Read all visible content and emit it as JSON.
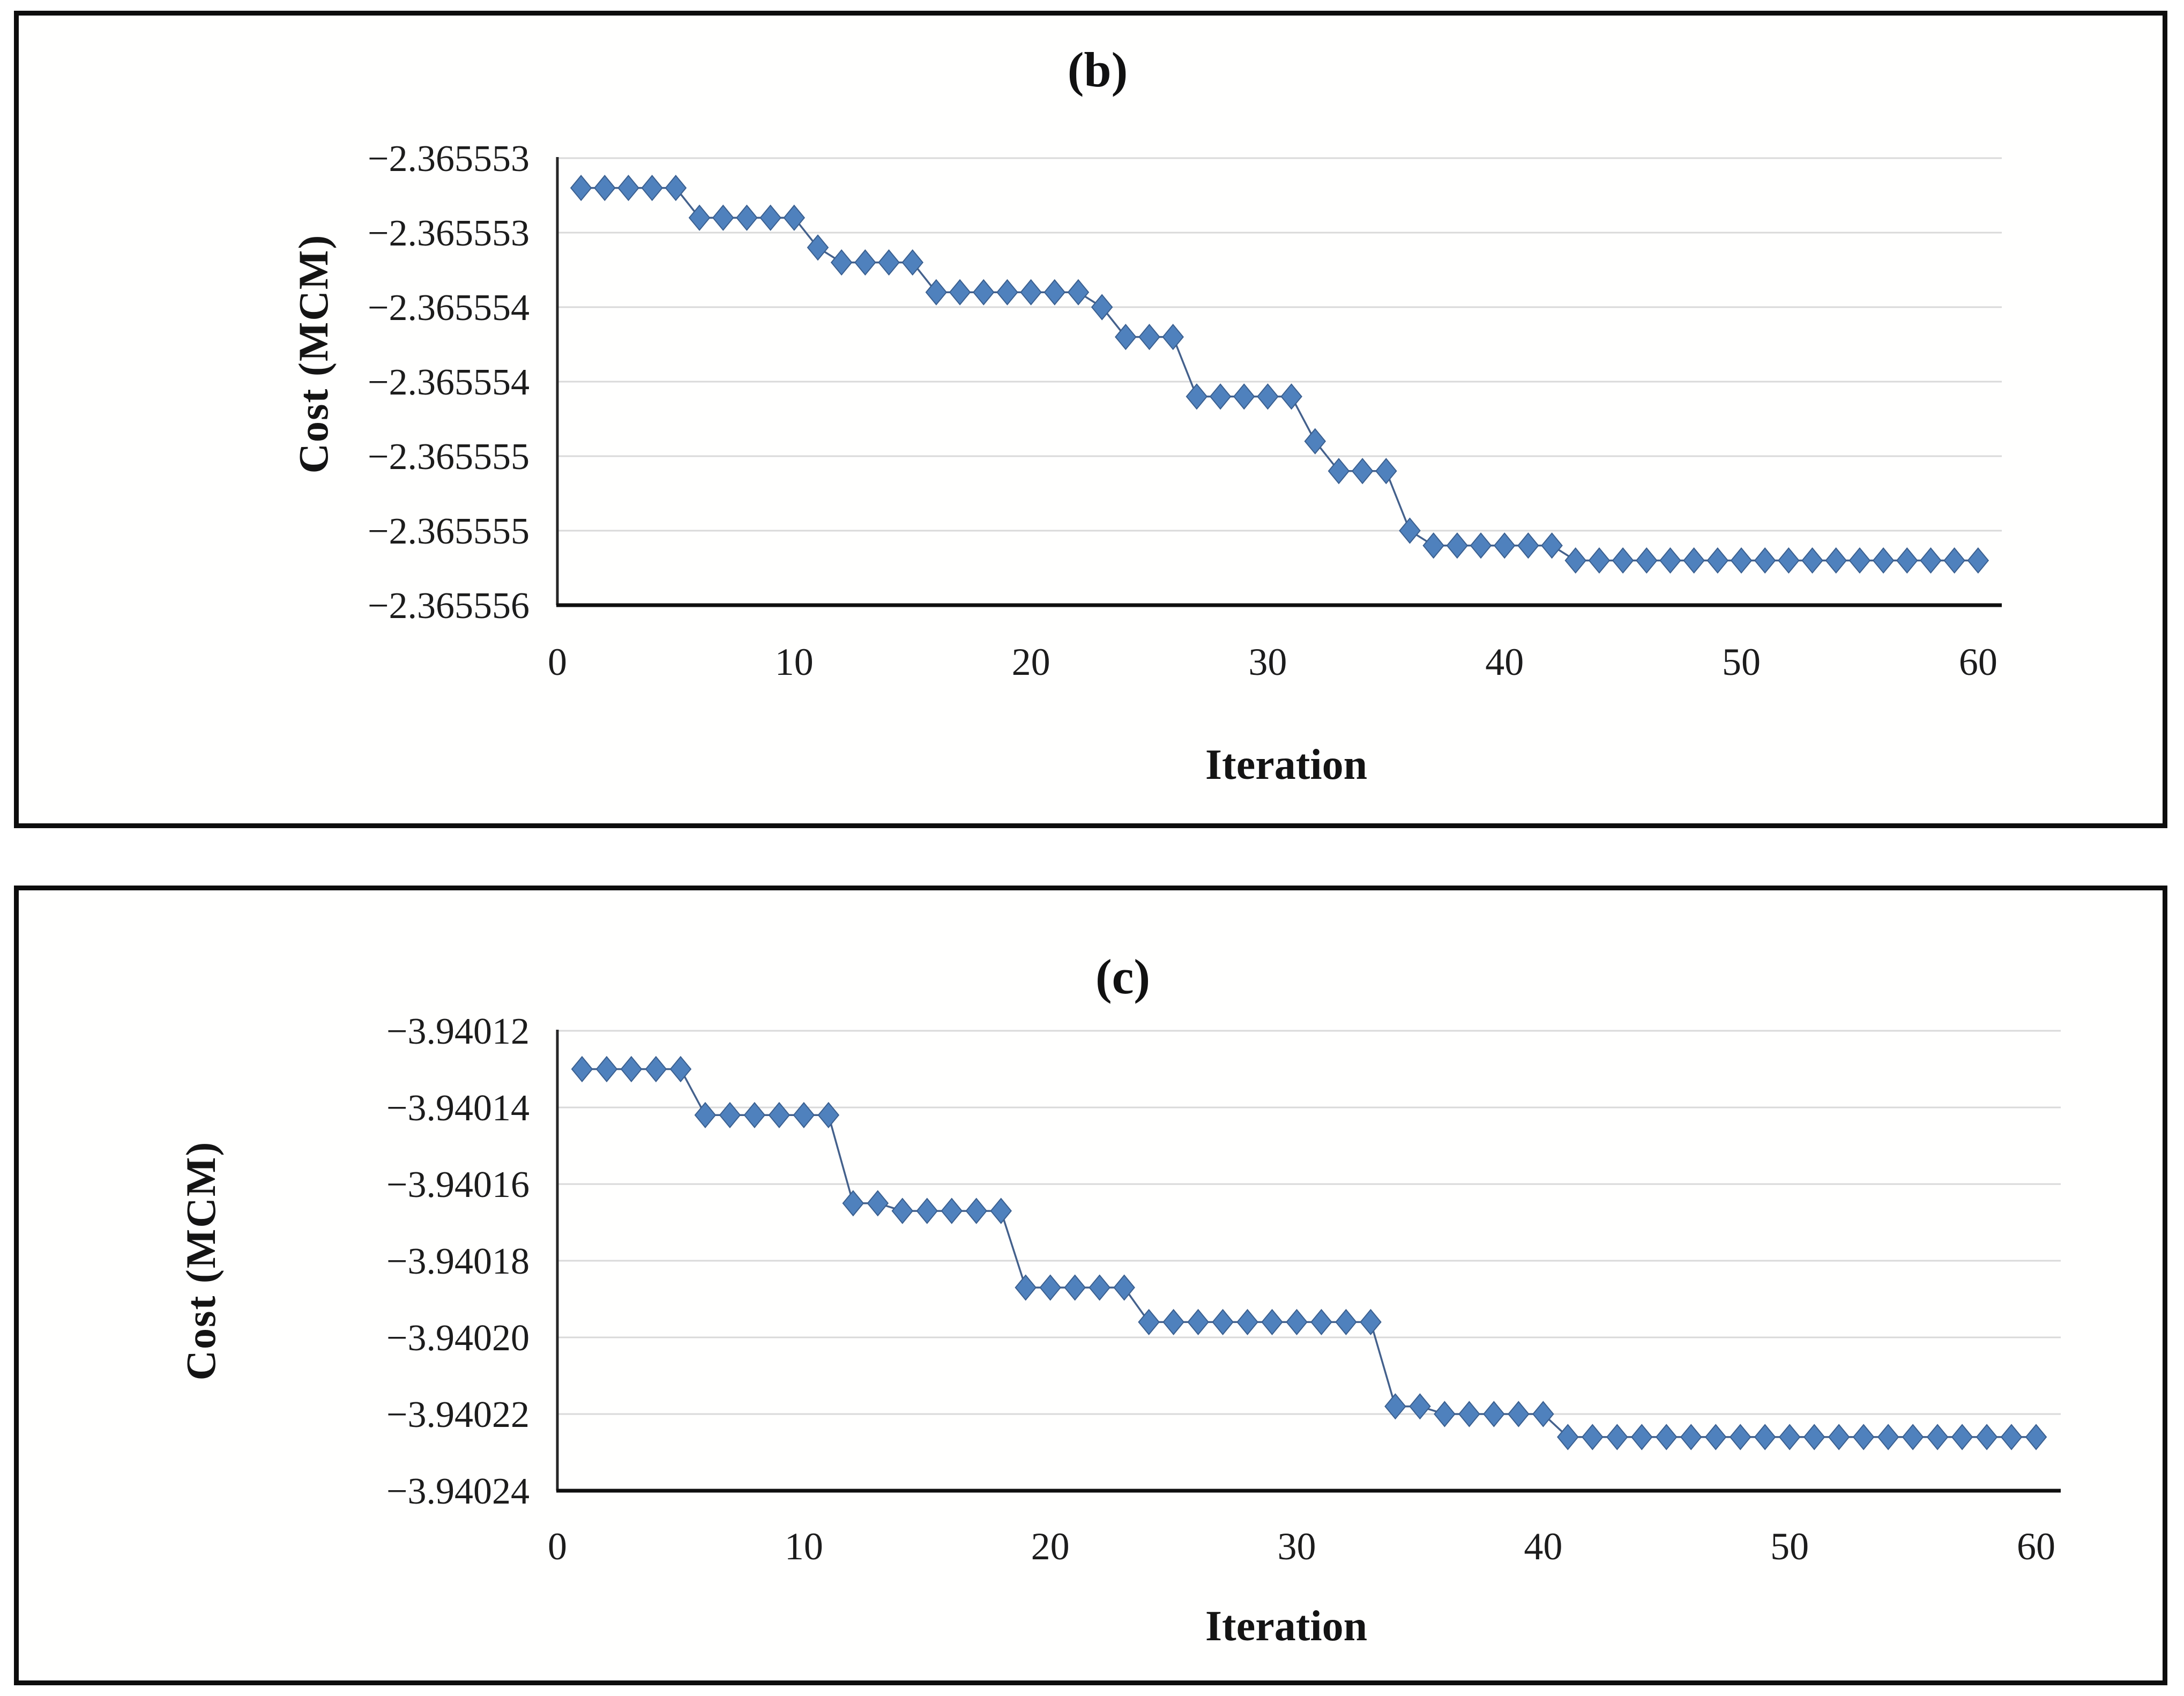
{
  "figure": {
    "panels": [
      {
        "title": "(b)",
        "ylabel": "Cost (MCM)",
        "xlabel": "Iteration"
      },
      {
        "title": "(c)",
        "ylabel": "Cost (MCM)",
        "xlabel": "Iteration"
      }
    ]
  },
  "chart_data": [
    {
      "type": "line",
      "title": "(b)",
      "xlabel": "Iteration",
      "ylabel": "Cost (MCM)",
      "legend": "none",
      "grid": "horizontal",
      "marker": "diamond",
      "marker_color": "#4F81BD",
      "line_color": "#44618C",
      "grid_color": "#D9D9D9",
      "axis_color": "#262626",
      "xlim": [
        0,
        61
      ],
      "ylim": [
        -2.365556,
        -2.365553
      ],
      "xtick_values": [
        0,
        10,
        20,
        30,
        40,
        50,
        60
      ],
      "xtick_labels": [
        "0",
        "10",
        "20",
        "30",
        "40",
        "50",
        "60"
      ],
      "ytick_values": [
        -2.365553,
        -2.3655535,
        -2.365554,
        -2.3655545,
        -2.365555,
        -2.3655555,
        -2.365556
      ],
      "ytick_labels": [
        "−2.365553",
        "−2.365553",
        "−2.365554",
        "−2.365554",
        "−2.365555",
        "−2.365555",
        "−2.365556"
      ],
      "x": [
        1,
        2,
        3,
        4,
        5,
        6,
        7,
        8,
        9,
        10,
        11,
        12,
        13,
        14,
        15,
        16,
        17,
        18,
        19,
        20,
        21,
        22,
        23,
        24,
        25,
        26,
        27,
        28,
        29,
        30,
        31,
        32,
        33,
        34,
        35,
        36,
        37,
        38,
        39,
        40,
        41,
        42,
        43,
        44,
        45,
        46,
        47,
        48,
        49,
        50,
        51,
        52,
        53,
        54,
        55,
        56,
        57,
        58,
        59,
        60
      ],
      "values": [
        -2.3655532,
        -2.3655532,
        -2.3655532,
        -2.3655532,
        -2.3655532,
        -2.3655534,
        -2.3655534,
        -2.3655534,
        -2.3655534,
        -2.3655534,
        -2.3655536,
        -2.3655537,
        -2.3655537,
        -2.3655537,
        -2.3655537,
        -2.3655539,
        -2.3655539,
        -2.3655539,
        -2.3655539,
        -2.3655539,
        -2.3655539,
        -2.3655539,
        -2.365554,
        -2.3655542,
        -2.3655542,
        -2.3655542,
        -2.3655546,
        -2.3655546,
        -2.3655546,
        -2.3655546,
        -2.3655546,
        -2.3655549,
        -2.3655551,
        -2.3655551,
        -2.3655551,
        -2.3655555,
        -2.3655556,
        -2.3655556,
        -2.3655556,
        -2.3655556,
        -2.3655556,
        -2.3655556,
        -2.3655557,
        -2.3655557,
        -2.3655557,
        -2.3655557,
        -2.3655557,
        -2.3655557,
        -2.3655557,
        -2.3655557,
        -2.3655557,
        -2.3655557,
        -2.3655557,
        -2.3655557,
        -2.3655557,
        -2.3655557,
        -2.3655557,
        -2.3655557,
        -2.3655557,
        -2.3655557
      ]
    },
    {
      "type": "line",
      "title": "(c)",
      "xlabel": "Iteration",
      "ylabel": "Cost (MCM)",
      "legend": "none",
      "grid": "horizontal",
      "marker": "diamond",
      "marker_color": "#4F81BD",
      "line_color": "#44618C",
      "grid_color": "#D9D9D9",
      "axis_color": "#262626",
      "xlim": [
        0,
        61
      ],
      "ylim": [
        -3.94024,
        -3.94012
      ],
      "xtick_values": [
        0,
        10,
        20,
        30,
        40,
        50,
        60
      ],
      "xtick_labels": [
        "0",
        "10",
        "20",
        "30",
        "40",
        "50",
        "60"
      ],
      "ytick_values": [
        -3.94012,
        -3.94014,
        -3.94016,
        -3.94018,
        -3.9402,
        -3.94022,
        -3.94024
      ],
      "ytick_labels": [
        "−3.94012",
        "−3.94014",
        "−3.94016",
        "−3.94018",
        "−3.94020",
        "−3.94022",
        "−3.94024"
      ],
      "x": [
        1,
        2,
        3,
        4,
        5,
        6,
        7,
        8,
        9,
        10,
        11,
        12,
        13,
        14,
        15,
        16,
        17,
        18,
        19,
        20,
        21,
        22,
        23,
        24,
        25,
        26,
        27,
        28,
        29,
        30,
        31,
        32,
        33,
        34,
        35,
        36,
        37,
        38,
        39,
        40,
        41,
        42,
        43,
        44,
        45,
        46,
        47,
        48,
        49,
        50,
        51,
        52,
        53,
        54,
        55,
        56,
        57,
        58,
        59,
        60
      ],
      "values": [
        -3.94013,
        -3.94013,
        -3.94013,
        -3.94013,
        -3.94013,
        -3.940142,
        -3.940142,
        -3.940142,
        -3.940142,
        -3.940142,
        -3.940142,
        -3.940165,
        -3.940165,
        -3.940167,
        -3.940167,
        -3.940167,
        -3.940167,
        -3.940167,
        -3.940187,
        -3.940187,
        -3.940187,
        -3.940187,
        -3.940187,
        -3.940196,
        -3.940196,
        -3.940196,
        -3.940196,
        -3.940196,
        -3.940196,
        -3.940196,
        -3.940196,
        -3.940196,
        -3.940196,
        -3.940218,
        -3.940218,
        -3.94022,
        -3.94022,
        -3.94022,
        -3.94022,
        -3.94022,
        -3.940226,
        -3.940226,
        -3.940226,
        -3.940226,
        -3.940226,
        -3.940226,
        -3.940226,
        -3.940226,
        -3.940226,
        -3.940226,
        -3.940226,
        -3.940226,
        -3.940226,
        -3.940226,
        -3.940226,
        -3.940226,
        -3.940226,
        -3.940226,
        -3.940226,
        -3.940226
      ]
    }
  ]
}
